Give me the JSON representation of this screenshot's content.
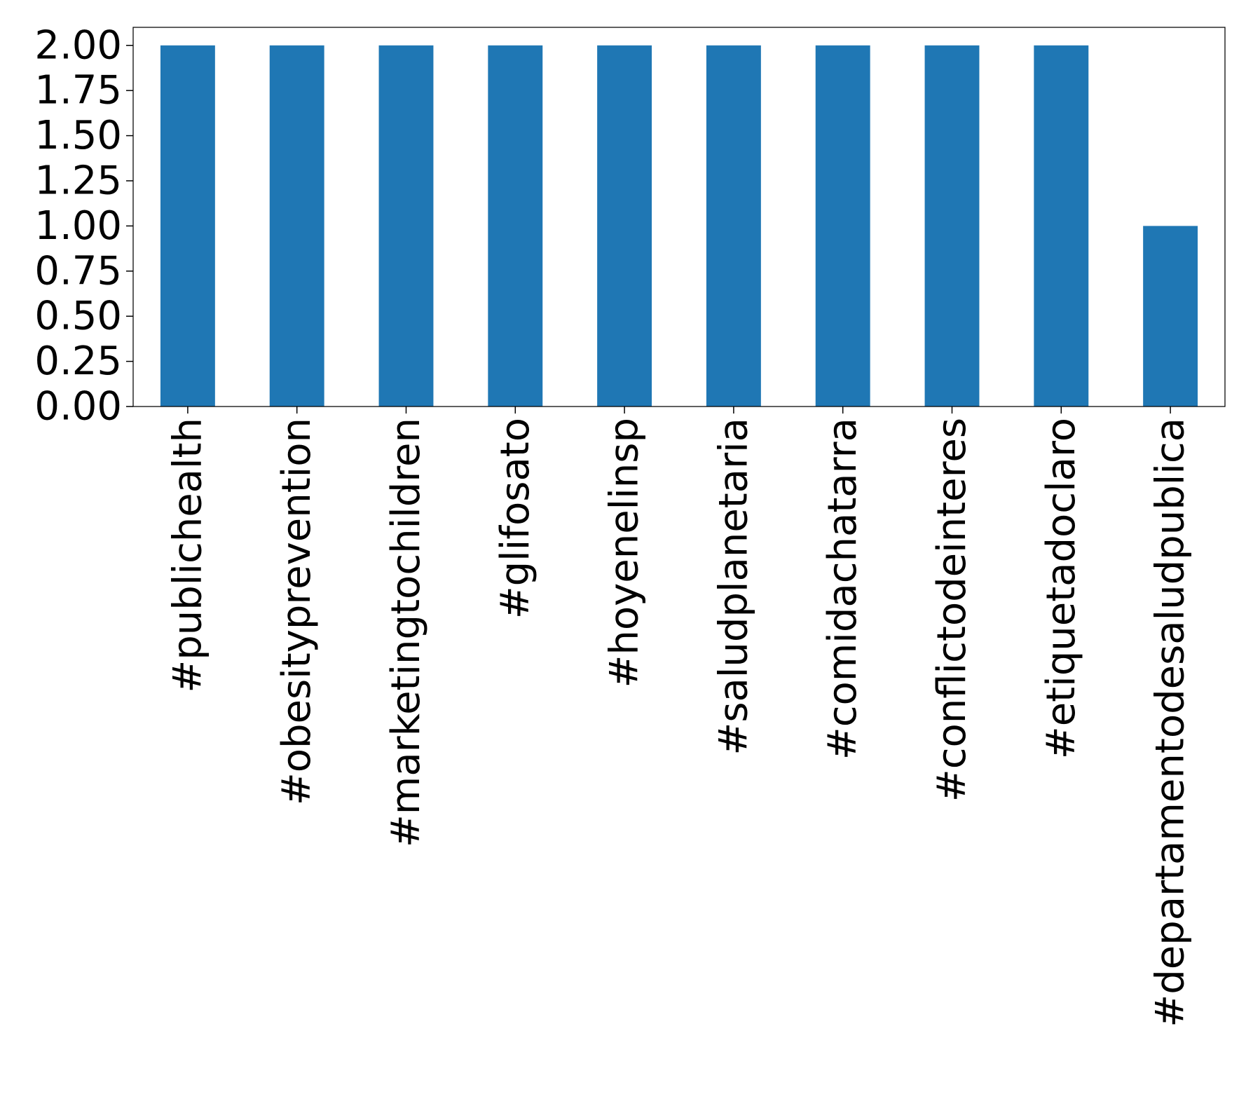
{
  "chart_data": {
    "type": "bar",
    "title": "",
    "xlabel": "",
    "ylabel": "",
    "categories": [
      "#publichealth",
      "#obesityprevention",
      "#marketingtochildren",
      "#glifosato",
      "#hoyenelinsp",
      "#saludplanetaria",
      "#comidachatarra",
      "#conflictodeinteres",
      "#etiquetadoclaro",
      "#departamentodesaludpublica"
    ],
    "values": [
      2,
      2,
      2,
      2,
      2,
      2,
      2,
      2,
      2,
      1
    ],
    "ylim": [
      0,
      2.1
    ],
    "yticks": [
      "0.00",
      "0.25",
      "0.50",
      "0.75",
      "1.00",
      "1.25",
      "1.50",
      "1.75",
      "2.00"
    ],
    "grid": false,
    "legend": "none",
    "colors": {
      "bar": "#1f77b4",
      "axis": "#000000",
      "background": "#ffffff"
    }
  }
}
